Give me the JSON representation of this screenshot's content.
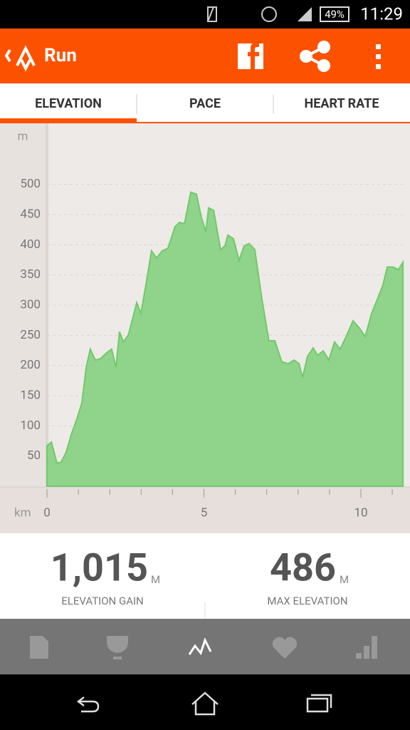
{
  "status_bar": {
    "battery": "49%",
    "time": "11:29"
  },
  "app_bar": {
    "title": "Run"
  },
  "tabs": [
    "ELEVATION",
    "PACE",
    "HEART RATE"
  ],
  "chart_data": {
    "type": "area",
    "y_unit": "m",
    "x_unit": "km",
    "color": "#8fd48a",
    "line_color": "#72c96c",
    "grid": true,
    "ylim": [
      0,
      600
    ],
    "yticks": [
      50,
      100,
      150,
      200,
      250,
      300,
      350,
      400,
      450,
      500
    ],
    "xlim": [
      0,
      11.4
    ],
    "xticks": [
      0,
      5,
      10
    ],
    "xminorticks": [
      1,
      2,
      3,
      4,
      6,
      7,
      8,
      9,
      11
    ],
    "x": [
      0,
      0.14,
      0.32,
      0.45,
      0.61,
      0.77,
      0.95,
      1.11,
      1.25,
      1.38,
      1.54,
      1.7,
      1.9,
      2.06,
      2.2,
      2.31,
      2.43,
      2.59,
      2.72,
      2.86,
      2.99,
      3.13,
      3.33,
      3.49,
      3.67,
      3.85,
      4.08,
      4.22,
      4.38,
      4.58,
      4.76,
      4.92,
      5.06,
      5.15,
      5.31,
      5.53,
      5.67,
      5.76,
      5.94,
      6.12,
      6.28,
      6.44,
      6.62,
      6.85,
      7.07,
      7.26,
      7.48,
      7.69,
      7.87,
      8.03,
      8.14,
      8.3,
      8.48,
      8.62,
      8.8,
      8.98,
      9.16,
      9.34,
      9.55,
      9.75,
      9.95,
      10.14,
      10.34,
      10.52,
      10.7,
      10.84,
      11.02,
      11.2,
      11.34
    ],
    "values": [
      67,
      73,
      38,
      40,
      56,
      85,
      111,
      138,
      197,
      227,
      209,
      211,
      221,
      227,
      197,
      256,
      239,
      250,
      276,
      304,
      286,
      327,
      390,
      378,
      390,
      394,
      430,
      437,
      435,
      487,
      484,
      445,
      422,
      461,
      457,
      392,
      398,
      416,
      410,
      374,
      398,
      402,
      392,
      309,
      241,
      241,
      206,
      203,
      209,
      203,
      180,
      215,
      229,
      217,
      224,
      209,
      239,
      227,
      250,
      274,
      262,
      248,
      286,
      309,
      333,
      363,
      363,
      359,
      371
    ]
  },
  "stats": [
    {
      "value": "1,015",
      "unit": "M",
      "label": "ELEVATION GAIN"
    },
    {
      "value": "486",
      "unit": "M",
      "label": "MAX ELEVATION"
    }
  ]
}
